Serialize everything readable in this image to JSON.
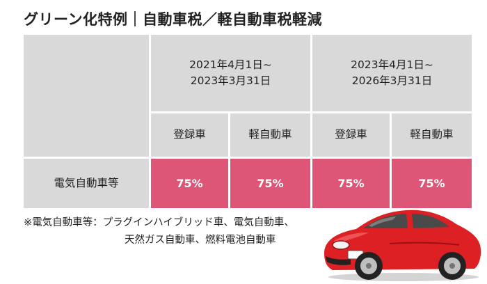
{
  "title": "グリーン化特例｜自動車税／軽自動車税軽減",
  "table": {
    "periods": [
      {
        "line1": "2021年4月1日~",
        "line2": "2023年3月31日"
      },
      {
        "line1": "2023年4月1日~",
        "line2": "2026年3月31日"
      }
    ],
    "sub_headers": [
      "登録車",
      "軽自動車",
      "登録車",
      "軽自動車"
    ],
    "row_label": "電気自動車等",
    "values": [
      "75%",
      "75%",
      "75%",
      "75%"
    ]
  },
  "note": {
    "line1": "※電気自動車等：プラグインハイブリッド車、電気自動車、",
    "line2": "天然ガス自動車、燃料電池自動車"
  },
  "colors": {
    "header_bg": "#d9d9d9",
    "value_bg": "#dd5577",
    "car_body": "#dc2024"
  },
  "illustration": "red-sports-car-icon"
}
